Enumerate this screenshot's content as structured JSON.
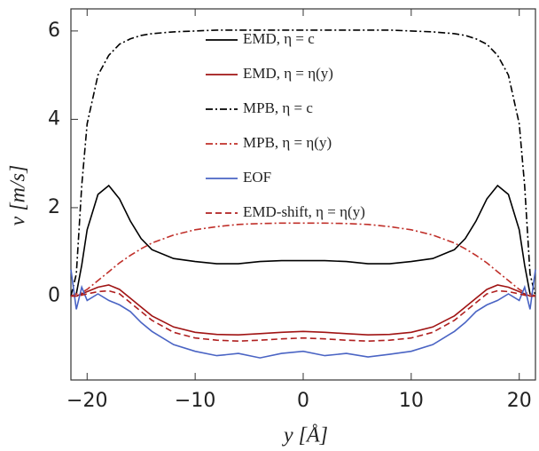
{
  "chart_data": {
    "type": "line",
    "xlabel": "y [Å]",
    "ylabel": "v [m/s]",
    "x": [
      -21.5,
      -21,
      -20.5,
      -20,
      -19,
      -18,
      -17,
      -16,
      -15,
      -14,
      -12,
      -10,
      -8,
      -6,
      -4,
      -2,
      0,
      2,
      4,
      6,
      8,
      10,
      12,
      14,
      15,
      16,
      17,
      18,
      19,
      20,
      20.5,
      21,
      21.5
    ],
    "series": [
      {
        "name": "EMD, η = c",
        "color": "#000000",
        "dash": "solid",
        "values": [
          0,
          0.05,
          0.7,
          1.5,
          2.3,
          2.5,
          2.2,
          1.7,
          1.3,
          1.05,
          0.85,
          0.78,
          0.73,
          0.73,
          0.78,
          0.8,
          0.8,
          0.8,
          0.78,
          0.73,
          0.73,
          0.78,
          0.85,
          1.05,
          1.3,
          1.7,
          2.2,
          2.5,
          2.3,
          1.5,
          0.7,
          0.05,
          0
        ]
      },
      {
        "name": "EMD, η = η(y)",
        "color": "#a01414",
        "dash": "solid",
        "values": [
          0,
          0,
          0.05,
          0.1,
          0.2,
          0.25,
          0.15,
          -0.05,
          -0.25,
          -0.45,
          -0.7,
          -0.82,
          -0.87,
          -0.88,
          -0.85,
          -0.82,
          -0.8,
          -0.82,
          -0.85,
          -0.88,
          -0.87,
          -0.82,
          -0.7,
          -0.45,
          -0.25,
          -0.05,
          0.15,
          0.25,
          0.2,
          0.1,
          0.05,
          0,
          0
        ]
      },
      {
        "name": "MPB, η = c",
        "color": "#000000",
        "dash": "dashdot",
        "values": [
          0,
          0.5,
          2.5,
          3.9,
          5.0,
          5.45,
          5.7,
          5.82,
          5.9,
          5.94,
          5.98,
          6.0,
          6.02,
          6.02,
          6.02,
          6.02,
          6.02,
          6.02,
          6.02,
          6.02,
          6.02,
          6.0,
          5.98,
          5.94,
          5.9,
          5.82,
          5.7,
          5.45,
          5.0,
          3.9,
          2.5,
          0.5,
          0
        ]
      },
      {
        "name": "MPB, η = η(y)",
        "color": "#c0302a",
        "dash": "dashdot",
        "values": [
          0,
          0.05,
          0.08,
          0.15,
          0.35,
          0.55,
          0.75,
          0.92,
          1.07,
          1.2,
          1.38,
          1.5,
          1.57,
          1.62,
          1.64,
          1.65,
          1.65,
          1.65,
          1.64,
          1.62,
          1.57,
          1.5,
          1.38,
          1.2,
          1.07,
          0.92,
          0.75,
          0.55,
          0.35,
          0.15,
          0.08,
          0.05,
          0
        ]
      },
      {
        "name": "EOF",
        "color": "#4a64c4",
        "dash": "solid",
        "values": [
          0.6,
          -0.3,
          0.2,
          -0.1,
          0.05,
          -0.1,
          -0.2,
          -0.35,
          -0.6,
          -0.8,
          -1.1,
          -1.25,
          -1.35,
          -1.3,
          -1.4,
          -1.3,
          -1.25,
          -1.35,
          -1.3,
          -1.38,
          -1.32,
          -1.25,
          -1.1,
          -0.8,
          -0.6,
          -0.35,
          -0.2,
          -0.1,
          0.05,
          -0.1,
          0.2,
          -0.3,
          0.6
        ]
      },
      {
        "name": "EMD-shift, η = η(y)",
        "color": "#b02020",
        "dash": "dashed",
        "values": [
          0,
          0,
          0.02,
          0.05,
          0.1,
          0.12,
          0.05,
          -0.15,
          -0.35,
          -0.55,
          -0.82,
          -0.95,
          -1.0,
          -1.02,
          -1.0,
          -0.97,
          -0.95,
          -0.97,
          -1.0,
          -1.02,
          -1.0,
          -0.95,
          -0.82,
          -0.55,
          -0.35,
          -0.15,
          0.05,
          0.12,
          0.1,
          0.05,
          0.02,
          0,
          0
        ]
      }
    ],
    "xlim": [
      -21.5,
      21.5
    ],
    "ylim": [
      -1.9,
      6.5
    ],
    "xticks": [
      {
        "value": -20,
        "label": "−20"
      },
      {
        "value": -10,
        "label": "−10"
      },
      0,
      10,
      20
    ],
    "yticks": [
      0,
      2,
      4,
      6
    ],
    "grid": false
  }
}
